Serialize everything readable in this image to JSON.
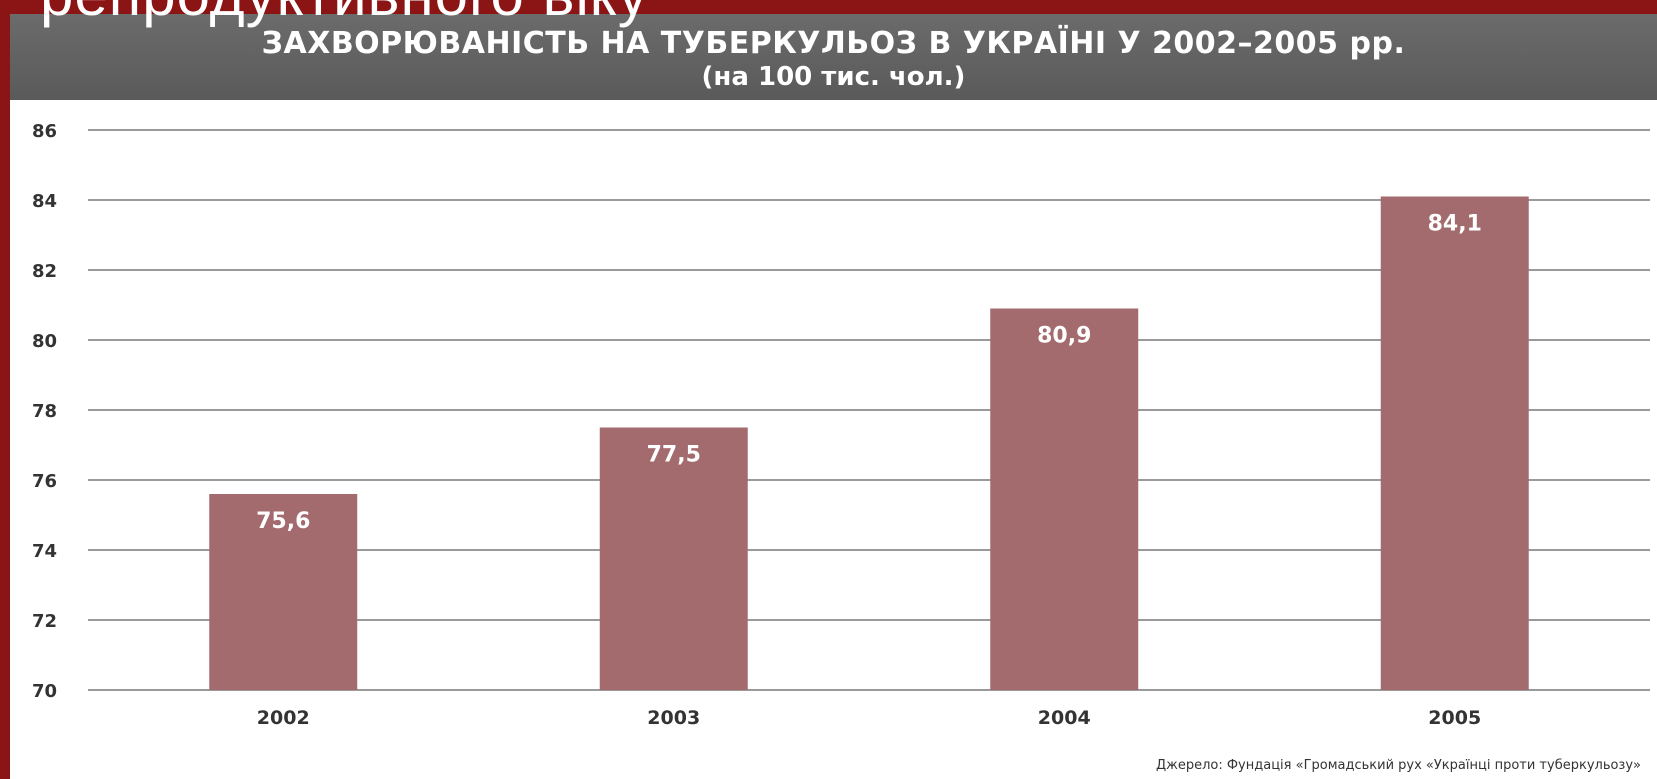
{
  "slide": {
    "overlay_title": "репродуктивного віку"
  },
  "chart_data": {
    "type": "bar",
    "title": "ЗАХВОРЮВАНІСТЬ НА ТУБЕРКУЛЬОЗ В УКРАЇНІ У 2002–2005 рр.",
    "subtitle": "(на 100 тис. чол.)",
    "categories": [
      "2002",
      "2003",
      "2004",
      "2005"
    ],
    "values": [
      75.6,
      77.5,
      80.9,
      84.1
    ],
    "value_labels": [
      "75,6",
      "77,5",
      "80,9",
      "84,1"
    ],
    "ylim": [
      70,
      86
    ],
    "yticks": [
      70,
      72,
      74,
      76,
      78,
      80,
      82,
      84,
      86
    ],
    "ytick_labels": [
      "70",
      "72",
      "74",
      "76",
      "78",
      "80",
      "82",
      "84",
      "86"
    ],
    "grid": true,
    "bar_color": "#a46b6e",
    "header_color": "#5f5f5f",
    "source": "Джерело: Фундація «Громадський рух «Українці проти туберкульозу»"
  }
}
